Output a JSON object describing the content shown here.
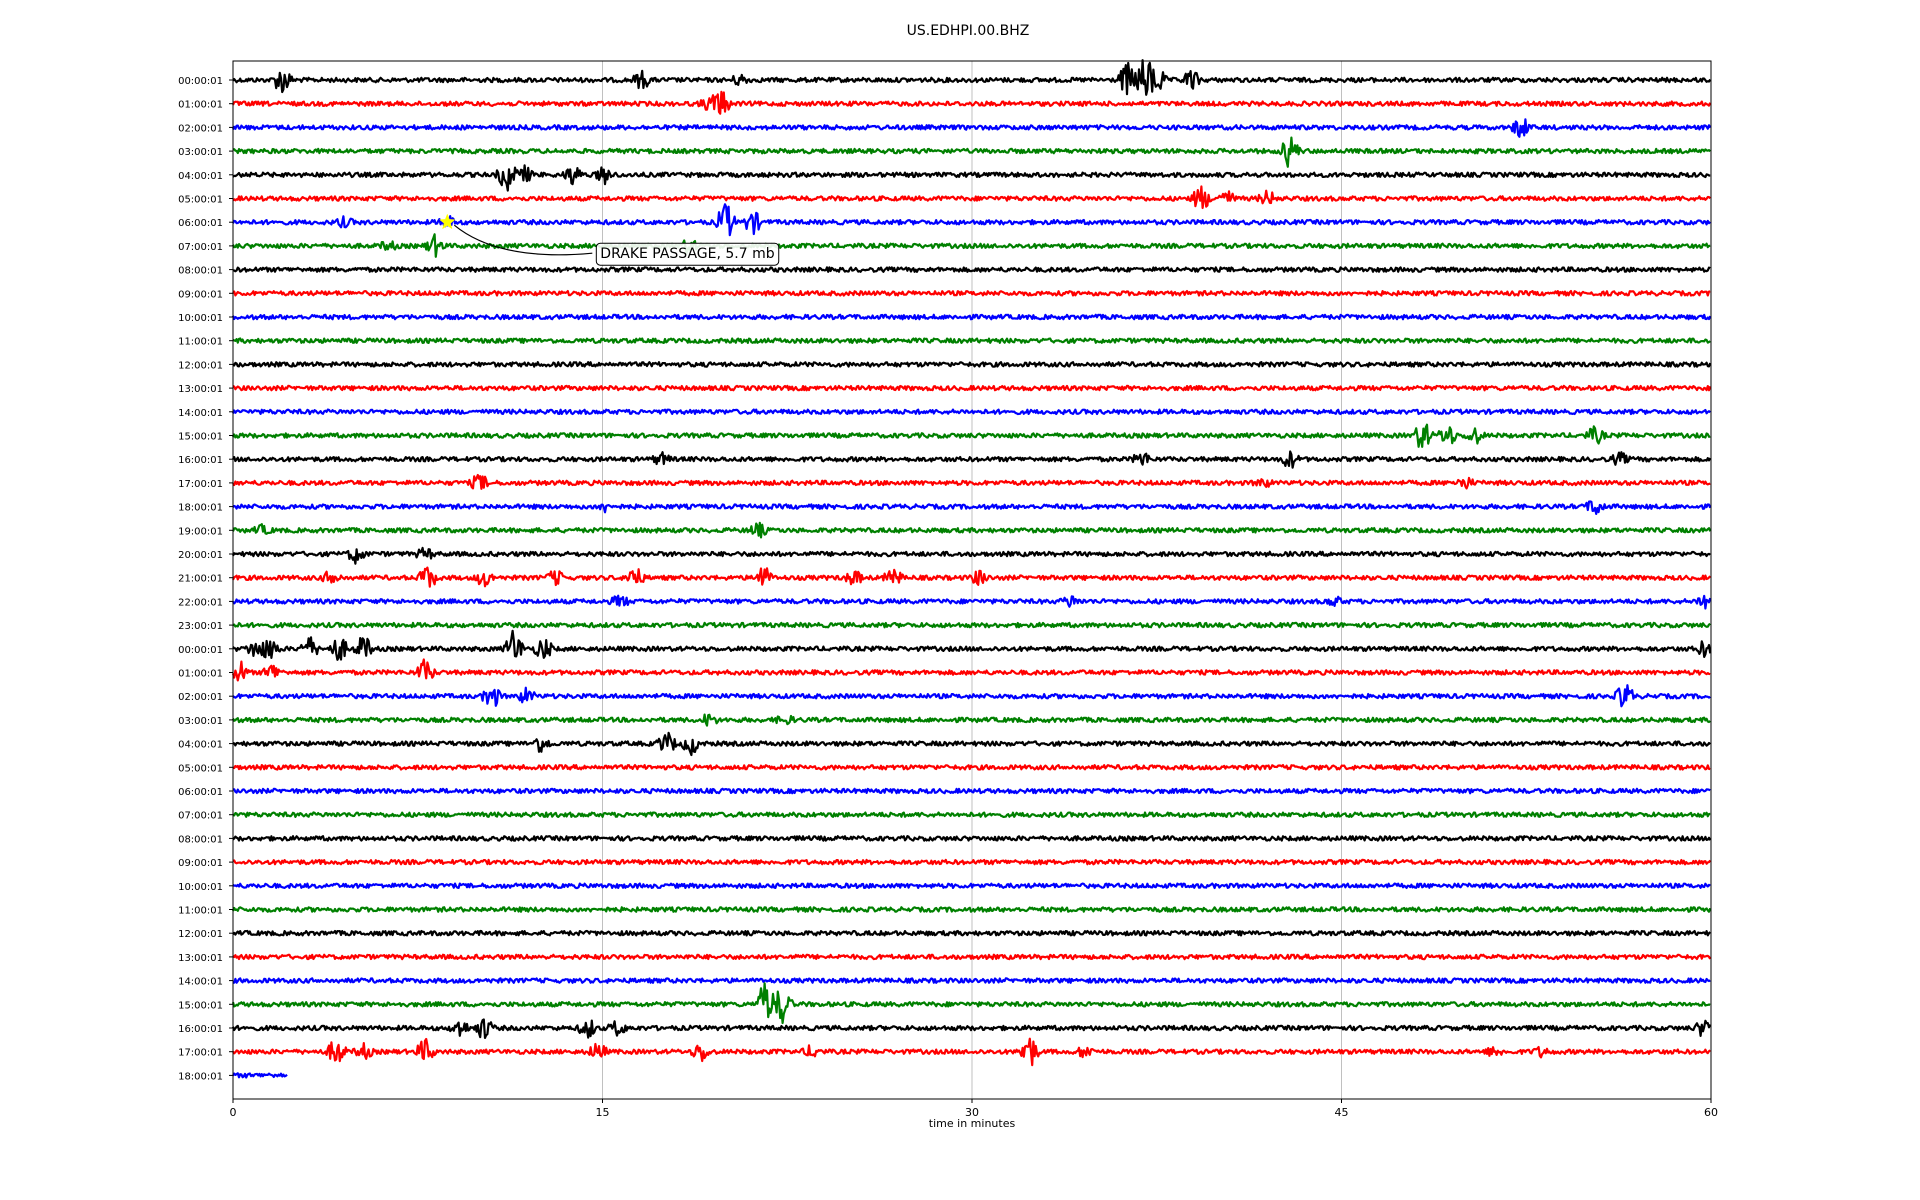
{
  "chart_data": {
    "type": "line",
    "title": "US.EDHPI.00.BHZ",
    "xlabel": "time in minutes",
    "ylabel": "",
    "xlim": [
      0,
      60
    ],
    "xticks": [
      "0",
      "15",
      "30",
      "45",
      "60"
    ],
    "grid": "vertical lines at x ticks",
    "trace_colors": [
      "#000000",
      "#ff0000",
      "#0000ff",
      "#008000"
    ],
    "rows": [
      {
        "label": "00:00:01",
        "end": 60,
        "events": [
          [
            2,
            1.0
          ],
          [
            16.6,
            0.6
          ],
          [
            20.6,
            0.4
          ],
          [
            36.3,
            1.2
          ],
          [
            37.0,
            1.6
          ],
          [
            37.5,
            1.0
          ],
          [
            38.9,
            0.7
          ]
        ]
      },
      {
        "label": "01:00:01",
        "end": 60,
        "events": [
          [
            19.8,
            1.0
          ],
          [
            19.3,
            0.4
          ]
        ]
      },
      {
        "label": "02:00:01",
        "end": 60,
        "events": [
          [
            52.3,
            0.8
          ]
        ]
      },
      {
        "label": "03:00:01",
        "end": 60,
        "events": [
          [
            42.9,
            1.2
          ]
        ]
      },
      {
        "label": "04:00:01",
        "end": 60,
        "events": [
          [
            11.1,
            1.2
          ],
          [
            11.8,
            0.6
          ],
          [
            13.8,
            0.7
          ],
          [
            15.1,
            0.6
          ]
        ]
      },
      {
        "label": "05:00:01",
        "end": 60,
        "events": [
          [
            39.3,
            0.9
          ],
          [
            40.3,
            0.6
          ],
          [
            42.0,
            0.5
          ]
        ]
      },
      {
        "label": "06:00:01",
        "end": 60,
        "events": [
          [
            4.5,
            0.3
          ],
          [
            8.7,
            0.4
          ],
          [
            20.0,
            1.4
          ],
          [
            21.1,
            0.8
          ]
        ]
      },
      {
        "label": "07:00:01",
        "end": 60,
        "events": [
          [
            6.3,
            0.3
          ],
          [
            8.2,
            0.7
          ],
          [
            18.5,
            0.5
          ]
        ]
      },
      {
        "label": "08:00:01",
        "end": 60,
        "events": []
      },
      {
        "label": "09:00:01",
        "end": 60,
        "events": []
      },
      {
        "label": "10:00:01",
        "end": 60,
        "events": []
      },
      {
        "label": "11:00:01",
        "end": 60,
        "events": []
      },
      {
        "label": "12:00:01",
        "end": 60,
        "events": []
      },
      {
        "label": "13:00:01",
        "end": 60,
        "events": []
      },
      {
        "label": "14:00:01",
        "end": 60,
        "events": []
      },
      {
        "label": "15:00:01",
        "end": 60,
        "events": [
          [
            48.3,
            1.1
          ],
          [
            49.3,
            0.8
          ],
          [
            50.4,
            0.6
          ],
          [
            55.3,
            0.6
          ]
        ]
      },
      {
        "label": "16:00:01",
        "end": 60,
        "events": [
          [
            17.4,
            0.4
          ],
          [
            36.9,
            0.5
          ],
          [
            42.9,
            0.6
          ],
          [
            56.3,
            0.4
          ]
        ]
      },
      {
        "label": "17:00:01",
        "end": 60,
        "events": [
          [
            10.0,
            0.6
          ],
          [
            41.8,
            0.3
          ],
          [
            50.0,
            0.4
          ]
        ]
      },
      {
        "label": "18:00:01",
        "end": 60,
        "events": [
          [
            15.1,
            0.3
          ],
          [
            55.3,
            0.6
          ]
        ]
      },
      {
        "label": "19:00:01",
        "end": 60,
        "events": [
          [
            1.2,
            0.3
          ],
          [
            21.3,
            0.5
          ]
        ]
      },
      {
        "label": "20:00:01",
        "end": 60,
        "events": [
          [
            5.0,
            0.6
          ],
          [
            7.8,
            0.4
          ]
        ]
      },
      {
        "label": "21:00:01",
        "end": 60,
        "events": [
          [
            4.0,
            0.5
          ],
          [
            7.9,
            0.9
          ],
          [
            10.2,
            0.6
          ],
          [
            13.1,
            0.5
          ],
          [
            16.3,
            0.8
          ],
          [
            21.5,
            0.9
          ],
          [
            25.2,
            0.5
          ],
          [
            26.8,
            0.6
          ],
          [
            30.3,
            0.5
          ]
        ]
      },
      {
        "label": "22:00:01",
        "end": 60,
        "events": [
          [
            15.7,
            0.4
          ],
          [
            34.0,
            0.4
          ],
          [
            44.7,
            0.3
          ],
          [
            59.8,
            0.7
          ]
        ]
      },
      {
        "label": "23:00:01",
        "end": 60,
        "events": []
      },
      {
        "label": "00:00:01",
        "end": 60,
        "events": [
          [
            0.9,
            0.6
          ],
          [
            1.5,
            0.8
          ],
          [
            3.1,
            0.8
          ],
          [
            4.3,
            0.9
          ],
          [
            5.3,
            0.9
          ],
          [
            11.4,
            1.4
          ],
          [
            12.6,
            0.8
          ],
          [
            59.7,
            0.5
          ]
        ]
      },
      {
        "label": "01:00:01",
        "end": 60,
        "events": [
          [
            0.2,
            1.0
          ],
          [
            1.6,
            0.6
          ],
          [
            7.8,
            0.9
          ]
        ]
      },
      {
        "label": "02:00:01",
        "end": 60,
        "events": [
          [
            10.5,
            0.9
          ],
          [
            11.9,
            0.5
          ],
          [
            56.5,
            1.0
          ]
        ]
      },
      {
        "label": "03:00:01",
        "end": 60,
        "events": [
          [
            19.3,
            0.4
          ],
          [
            22.4,
            0.3
          ]
        ]
      },
      {
        "label": "04:00:01",
        "end": 60,
        "events": [
          [
            12.5,
            0.6
          ],
          [
            17.6,
            0.8
          ],
          [
            18.6,
            0.7
          ]
        ]
      },
      {
        "label": "05:00:01",
        "end": 60,
        "events": []
      },
      {
        "label": "06:00:01",
        "end": 60,
        "events": []
      },
      {
        "label": "07:00:01",
        "end": 60,
        "events": []
      },
      {
        "label": "08:00:01",
        "end": 60,
        "events": []
      },
      {
        "label": "09:00:01",
        "end": 60,
        "events": []
      },
      {
        "label": "10:00:01",
        "end": 60,
        "events": []
      },
      {
        "label": "11:00:01",
        "end": 60,
        "events": []
      },
      {
        "label": "12:00:01",
        "end": 60,
        "events": []
      },
      {
        "label": "13:00:01",
        "end": 60,
        "events": []
      },
      {
        "label": "14:00:01",
        "end": 60,
        "events": []
      },
      {
        "label": "15:00:01",
        "end": 60,
        "events": [
          [
            21.6,
            1.6
          ],
          [
            22.3,
            1.4
          ]
        ]
      },
      {
        "label": "16:00:01",
        "end": 60,
        "events": [
          [
            9.2,
            0.6
          ],
          [
            10.2,
            0.8
          ],
          [
            14.4,
            0.7
          ],
          [
            15.6,
            0.5
          ],
          [
            59.7,
            0.6
          ]
        ]
      },
      {
        "label": "17:00:01",
        "end": 60,
        "events": [
          [
            4.2,
            1.0
          ],
          [
            5.3,
            0.5
          ],
          [
            7.8,
            0.9
          ],
          [
            14.8,
            0.6
          ],
          [
            19.0,
            0.7
          ],
          [
            23.5,
            0.4
          ],
          [
            32.3,
            1.4
          ],
          [
            34.6,
            0.4
          ],
          [
            51.2,
            0.3
          ],
          [
            53.1,
            0.3
          ]
        ]
      },
      {
        "label": "18:00:01",
        "end": 2.2,
        "events": []
      }
    ],
    "annotation": {
      "text": "DRAKE PASSAGE, 5.7 mb",
      "row": 6,
      "x": 8.7,
      "marker": "yellow star"
    }
  }
}
